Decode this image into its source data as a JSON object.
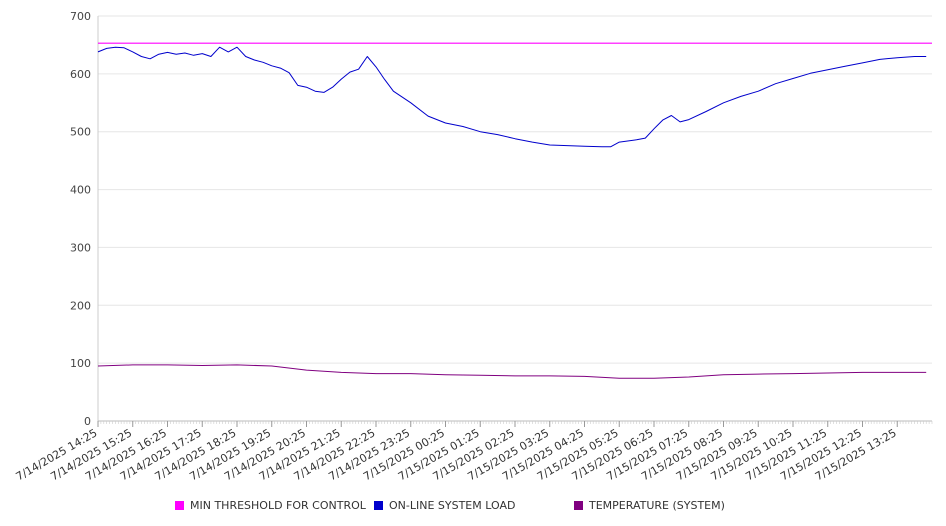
{
  "chart_data": {
    "type": "line",
    "title": "",
    "xlabel": "",
    "ylabel": "",
    "ylim": [
      0,
      700
    ],
    "yticks": [
      0,
      100,
      200,
      300,
      400,
      500,
      600,
      700
    ],
    "grid": true,
    "legend_position": "bottom",
    "x_tick_labels": [
      "7/14/2025 14:25",
      "7/14/2025 15:25",
      "7/14/2025 16:25",
      "7/14/2025 17:25",
      "7/14/2025 18:25",
      "7/14/2025 19:25",
      "7/14/2025 20:25",
      "7/14/2025 21:25",
      "7/14/2025 22:25",
      "7/14/2025 23:25",
      "7/15/2025 00:25",
      "7/15/2025 01:25",
      "7/15/2025 02:25",
      "7/15/2025 03:25",
      "7/15/2025 04:25",
      "7/15/2025 05:25",
      "7/15/2025 06:25",
      "7/15/2025 07:25",
      "7/15/2025 08:25",
      "7/15/2025 09:25",
      "7/15/2025 10:25",
      "7/15/2025 11:25",
      "7/15/2025 12:25",
      "7/15/2025 13:25"
    ],
    "series": [
      {
        "name": "MIN THRESHOLD FOR CONTROL",
        "color": "#ff00ff",
        "x": [
          "7/14/2025 14:25",
          "7/15/2025 14:25"
        ],
        "y": [
          653,
          653
        ]
      },
      {
        "name": "ON-LINE SYSTEM LOAD",
        "color": "#0000cc",
        "x": [
          "7/14/2025 14:25",
          "7/14/2025 14:40",
          "7/14/2025 14:55",
          "7/14/2025 15:10",
          "7/14/2025 15:25",
          "7/14/2025 15:40",
          "7/14/2025 15:55",
          "7/14/2025 16:10",
          "7/14/2025 16:25",
          "7/14/2025 16:40",
          "7/14/2025 16:55",
          "7/14/2025 17:10",
          "7/14/2025 17:25",
          "7/14/2025 17:40",
          "7/14/2025 17:55",
          "7/14/2025 18:10",
          "7/14/2025 18:25",
          "7/14/2025 18:40",
          "7/14/2025 18:55",
          "7/14/2025 19:10",
          "7/14/2025 19:25",
          "7/14/2025 19:40",
          "7/14/2025 19:55",
          "7/14/2025 20:10",
          "7/14/2025 20:25",
          "7/14/2025 20:40",
          "7/14/2025 20:55",
          "7/14/2025 21:10",
          "7/14/2025 21:25",
          "7/14/2025 21:40",
          "7/14/2025 21:55",
          "7/14/2025 22:10",
          "7/14/2025 22:25",
          "7/14/2025 22:40",
          "7/14/2025 22:55",
          "7/14/2025 23:25",
          "7/14/2025 23:55",
          "7/15/2025 00:25",
          "7/15/2025 00:55",
          "7/15/2025 01:25",
          "7/15/2025 01:55",
          "7/15/2025 02:25",
          "7/15/2025 02:55",
          "7/15/2025 03:25",
          "7/15/2025 03:55",
          "7/15/2025 04:25",
          "7/15/2025 04:55",
          "7/15/2025 05:10",
          "7/15/2025 05:25",
          "7/15/2025 05:55",
          "7/15/2025 06:10",
          "7/15/2025 06:25",
          "7/15/2025 06:40",
          "7/15/2025 06:55",
          "7/15/2025 07:10",
          "7/15/2025 07:25",
          "7/15/2025 07:55",
          "7/15/2025 08:25",
          "7/15/2025 08:55",
          "7/15/2025 09:25",
          "7/15/2025 09:55",
          "7/15/2025 10:25",
          "7/15/2025 10:55",
          "7/15/2025 11:25",
          "7/15/2025 11:55",
          "7/15/2025 12:25",
          "7/15/2025 12:55",
          "7/15/2025 13:25",
          "7/15/2025 13:55",
          "7/15/2025 14:15"
        ],
        "y": [
          638,
          644,
          646,
          645,
          638,
          630,
          626,
          634,
          637,
          634,
          636,
          632,
          635,
          630,
          646,
          638,
          646,
          630,
          624,
          620,
          614,
          610,
          602,
          580,
          577,
          570,
          568,
          577,
          591,
          603,
          608,
          630,
          612,
          590,
          570,
          550,
          527,
          515,
          509,
          500,
          495,
          488,
          482,
          477,
          476,
          475,
          474,
          474,
          482,
          486,
          489,
          505,
          520,
          528,
          517,
          521,
          535,
          550,
          561,
          570,
          583,
          592,
          601,
          607,
          613,
          619,
          625,
          628,
          630,
          630
        ]
      },
      {
        "name": "TEMPERATURE (SYSTEM)",
        "color": "#800080",
        "x": [
          "7/14/2025 14:25",
          "7/14/2025 15:25",
          "7/14/2025 16:25",
          "7/14/2025 17:25",
          "7/14/2025 18:25",
          "7/14/2025 19:25",
          "7/14/2025 20:25",
          "7/14/2025 21:25",
          "7/14/2025 22:25",
          "7/14/2025 23:25",
          "7/15/2025 00:25",
          "7/15/2025 01:25",
          "7/15/2025 02:25",
          "7/15/2025 03:25",
          "7/15/2025 04:25",
          "7/15/2025 05:25",
          "7/15/2025 06:25",
          "7/15/2025 07:25",
          "7/15/2025 08:25",
          "7/15/2025 09:25",
          "7/15/2025 10:25",
          "7/15/2025 11:25",
          "7/15/2025 12:25",
          "7/15/2025 13:25",
          "7/15/2025 14:15"
        ],
        "y": [
          95,
          97,
          97,
          96,
          97,
          95,
          88,
          84,
          82,
          82,
          80,
          79,
          78,
          78,
          77,
          74,
          74,
          76,
          80,
          81,
          82,
          83,
          84,
          84,
          84
        ]
      }
    ]
  }
}
